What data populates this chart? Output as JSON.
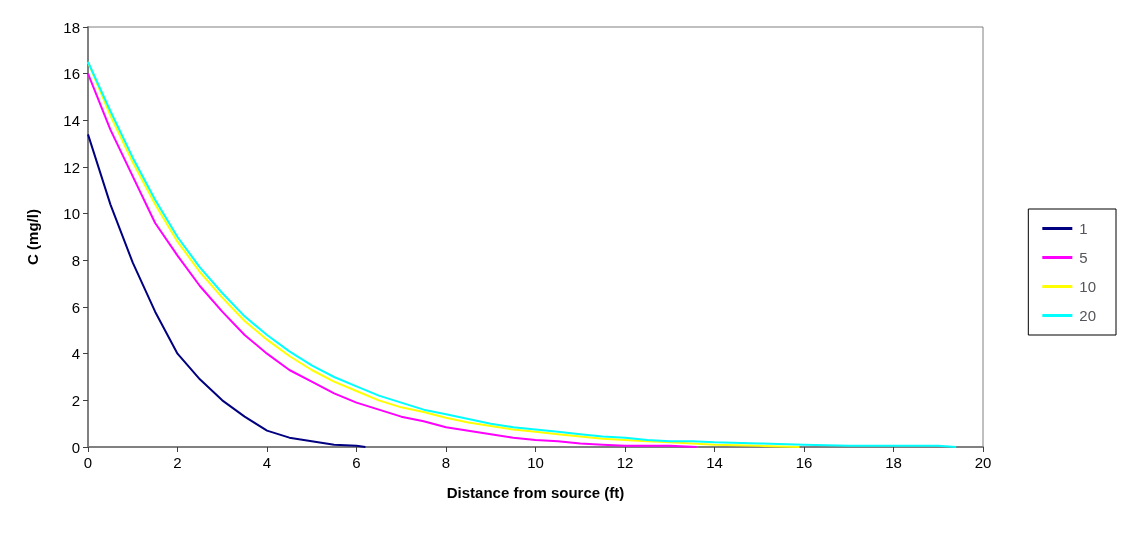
{
  "chart_data": {
    "type": "line",
    "xlabel": "Distance from source (ft)",
    "ylabel": "C (mg/l)",
    "xlim": [
      0,
      20
    ],
    "xticks": [
      0,
      2,
      4,
      6,
      8,
      10,
      12,
      14,
      16,
      18,
      20
    ],
    "ylim": [
      0,
      18
    ],
    "yticks": [
      0,
      2,
      4,
      6,
      8,
      10,
      12,
      14,
      16,
      18
    ],
    "grid": false,
    "legend": "right",
    "marker": "none",
    "line_style": "solid",
    "series": [
      {
        "name": "1",
        "color": "#000080",
        "x": [
          0,
          0.5,
          1,
          1.5,
          2,
          2.5,
          3,
          3.5,
          4,
          4.5,
          5,
          5.5,
          6,
          6.2
        ],
        "values": [
          13.4,
          10.4,
          7.9,
          5.8,
          4.0,
          2.9,
          2.0,
          1.3,
          0.7,
          0.4,
          0.25,
          0.1,
          0.05,
          0
        ]
      },
      {
        "name": "5",
        "color": "#ff00ff",
        "x": [
          0,
          0.5,
          1,
          1.5,
          2,
          2.5,
          3,
          3.5,
          4,
          4.5,
          5,
          5.5,
          6,
          6.5,
          7,
          7.5,
          8,
          8.5,
          9,
          9.5,
          10,
          10.5,
          11,
          11.5,
          12,
          13,
          13.6
        ],
        "values": [
          16.0,
          13.6,
          11.6,
          9.6,
          8.2,
          6.9,
          5.8,
          4.8,
          4.0,
          3.3,
          2.8,
          2.3,
          1.9,
          1.6,
          1.3,
          1.1,
          0.85,
          0.7,
          0.55,
          0.4,
          0.3,
          0.25,
          0.15,
          0.1,
          0.05,
          0.05,
          0
        ]
      },
      {
        "name": "10",
        "color": "#ffff00",
        "x": [
          0,
          0.5,
          1,
          1.5,
          2,
          2.5,
          3,
          3.5,
          4,
          4.5,
          5,
          5.5,
          6,
          6.5,
          7,
          7.5,
          8,
          8.5,
          9,
          9.5,
          10,
          10.5,
          11,
          11.5,
          12,
          12.5,
          13,
          13.5,
          14,
          15,
          15.9
        ],
        "values": [
          16.5,
          14.2,
          12.2,
          10.4,
          8.8,
          7.5,
          6.4,
          5.4,
          4.6,
          3.9,
          3.3,
          2.8,
          2.4,
          2.0,
          1.7,
          1.5,
          1.25,
          1.05,
          0.9,
          0.75,
          0.65,
          0.55,
          0.45,
          0.35,
          0.3,
          0.25,
          0.2,
          0.15,
          0.1,
          0.05,
          0
        ]
      },
      {
        "name": "20",
        "color": "#00ffff",
        "x": [
          0,
          0.5,
          1,
          1.5,
          2,
          2.5,
          3,
          3.5,
          4,
          4.5,
          5,
          5.5,
          6,
          6.5,
          7,
          7.5,
          8,
          8.5,
          9,
          9.5,
          10,
          10.5,
          11,
          11.5,
          12,
          12.5,
          13,
          13.5,
          14,
          15,
          16,
          17,
          19,
          19.4
        ],
        "values": [
          16.5,
          14.4,
          12.4,
          10.6,
          9.0,
          7.7,
          6.6,
          5.6,
          4.8,
          4.1,
          3.5,
          3.0,
          2.6,
          2.2,
          1.9,
          1.6,
          1.4,
          1.2,
          1.0,
          0.85,
          0.75,
          0.65,
          0.55,
          0.45,
          0.4,
          0.3,
          0.25,
          0.25,
          0.2,
          0.15,
          0.1,
          0.05,
          0.05,
          0
        ]
      }
    ]
  }
}
